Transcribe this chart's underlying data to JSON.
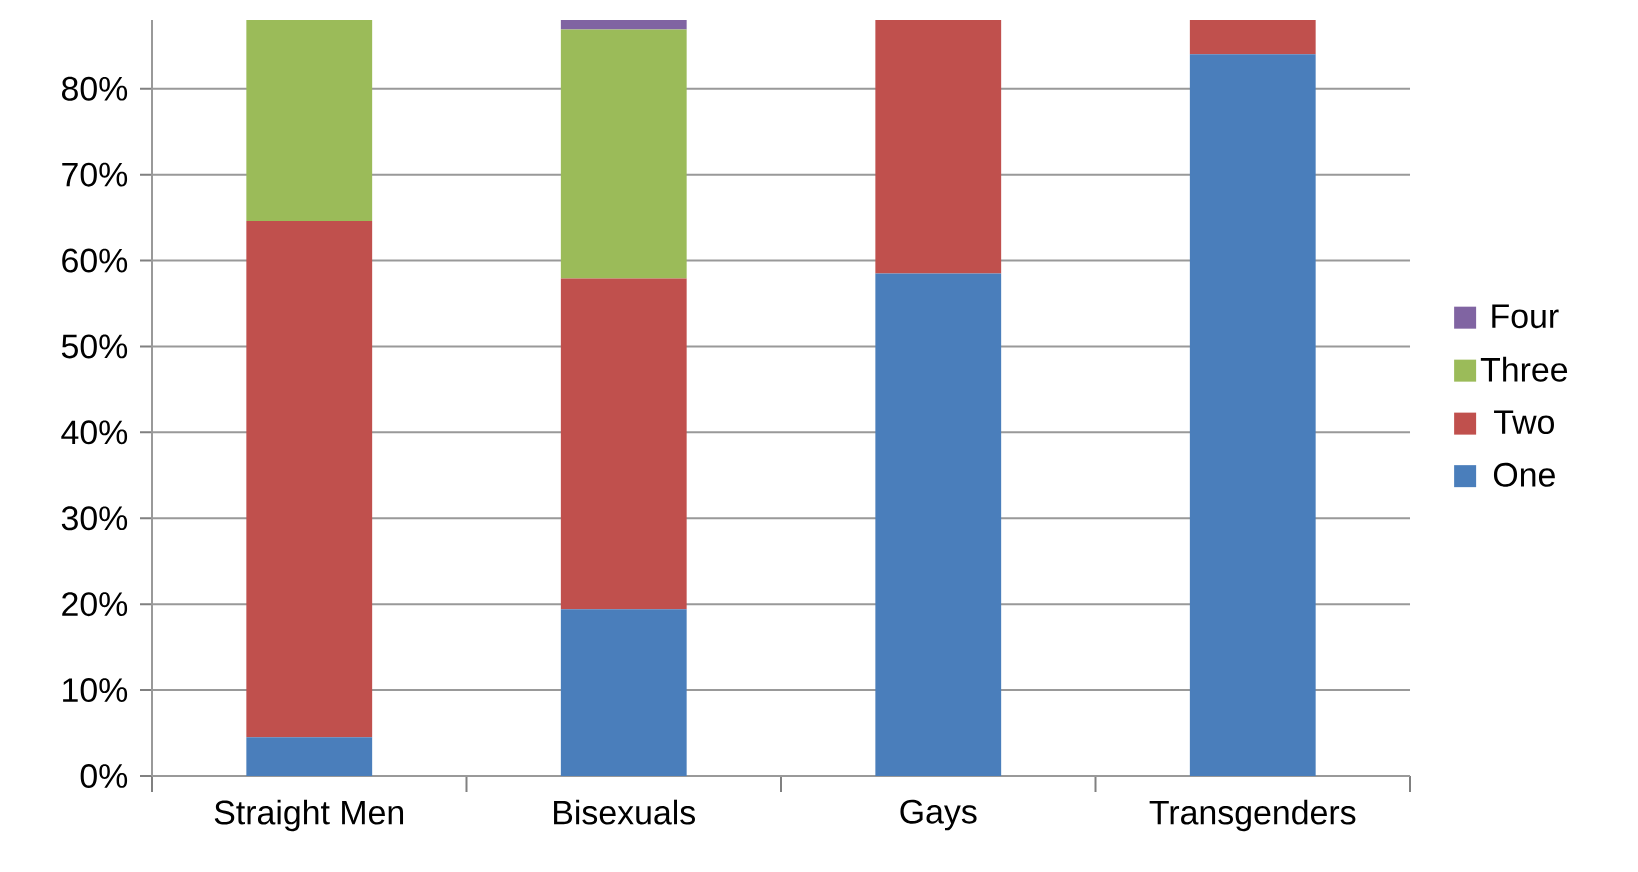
{
  "chart_data": {
    "type": "bar",
    "stacked": true,
    "categories": [
      "Straight Men",
      "Bisexuals",
      "Gays",
      "Transgenders"
    ],
    "series": [
      {
        "name": "One",
        "color": "#4a7ebb",
        "values": [
          4.5,
          19.4,
          58.5,
          84
        ]
      },
      {
        "name": "Two",
        "color": "#c0504d",
        "values": [
          60.1,
          38.5,
          29.5,
          4
        ]
      },
      {
        "name": "Three",
        "color": "#9bbb59",
        "values": [
          23.4,
          29,
          null,
          null
        ]
      },
      {
        "name": "Four",
        "color": "#8064a2",
        "values": [
          null,
          1.1,
          null,
          null
        ]
      }
    ],
    "ylim": [
      0,
      88
    ],
    "yticks": [
      {
        "value": 0,
        "label": "0%"
      },
      {
        "value": 10,
        "label": "10%"
      },
      {
        "value": 20,
        "label": "20%"
      },
      {
        "value": 30,
        "label": "30%"
      },
      {
        "value": 40,
        "label": "40%"
      },
      {
        "value": 50,
        "label": "50%"
      },
      {
        "value": 60,
        "label": "60%"
      },
      {
        "value": 70,
        "label": "70%"
      },
      {
        "value": 80,
        "label": "80%"
      }
    ],
    "grid": "y",
    "legend": "right"
  }
}
